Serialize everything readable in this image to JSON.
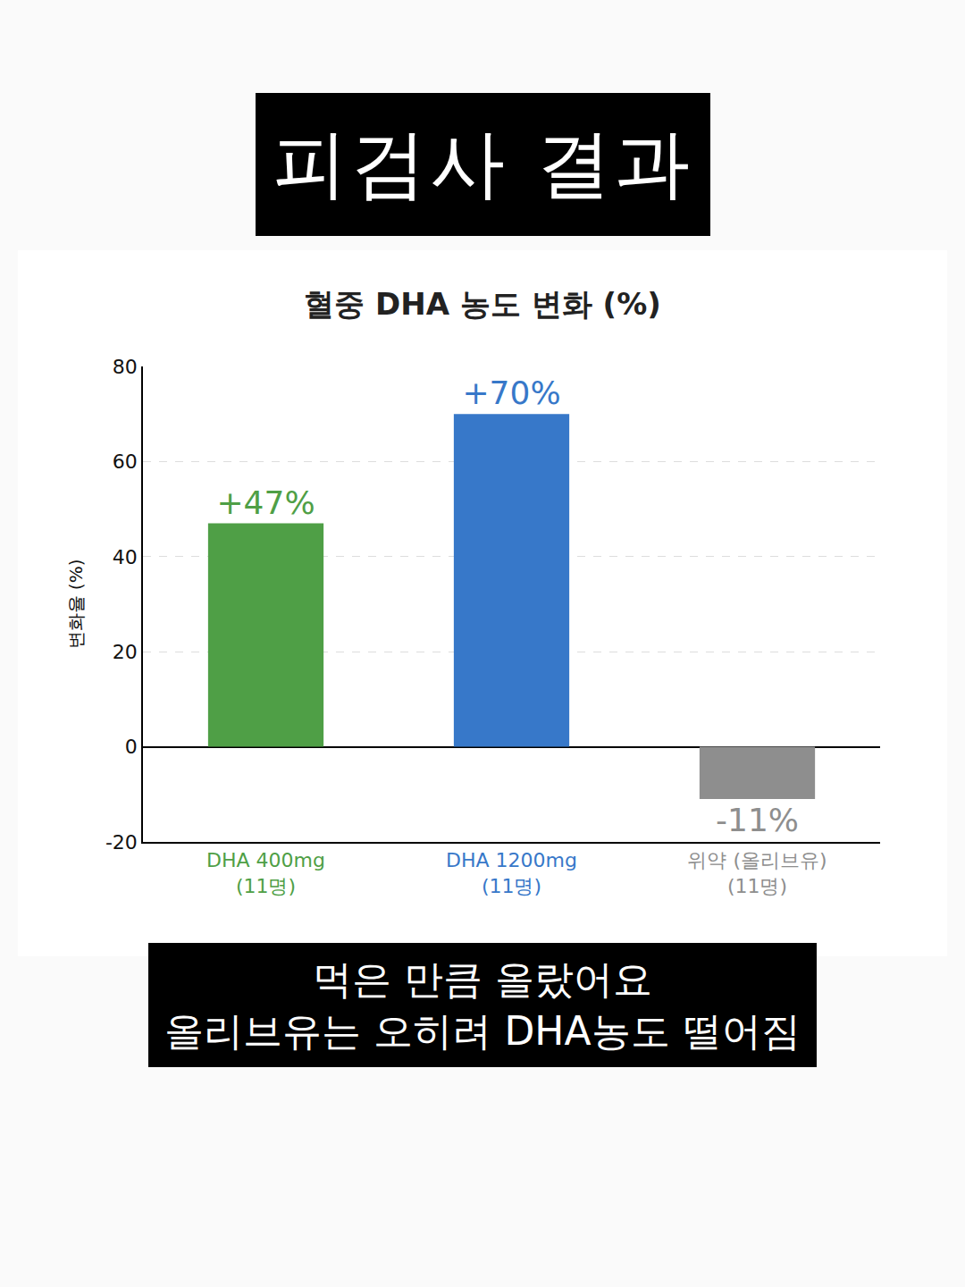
{
  "header": {
    "title": "피검사 결과"
  },
  "chart_data": {
    "type": "bar",
    "title": "혈중 DHA 농도 변화 (%)",
    "y_label": "변화율 (%)",
    "categories": [
      "DHA 400mg (11명)",
      "DHA 1200mg (11명)",
      "위약 (올리브유) (11명)"
    ],
    "values": [
      47,
      70,
      -11
    ],
    "value_labels": [
      "+47%",
      "+70%",
      "-11%"
    ],
    "colors": [
      "#4f9f46",
      "#3778c9",
      "#8e8e8e"
    ],
    "ylim": [
      -20,
      80
    ],
    "yticks": [
      -20,
      0,
      20,
      40,
      60,
      80
    ],
    "grid": true,
    "data_labels": true
  },
  "caption": {
    "lines": [
      "먹은 만큼 올랐어요",
      "올리브유는 오히려 DHA농도 떨어짐"
    ]
  }
}
